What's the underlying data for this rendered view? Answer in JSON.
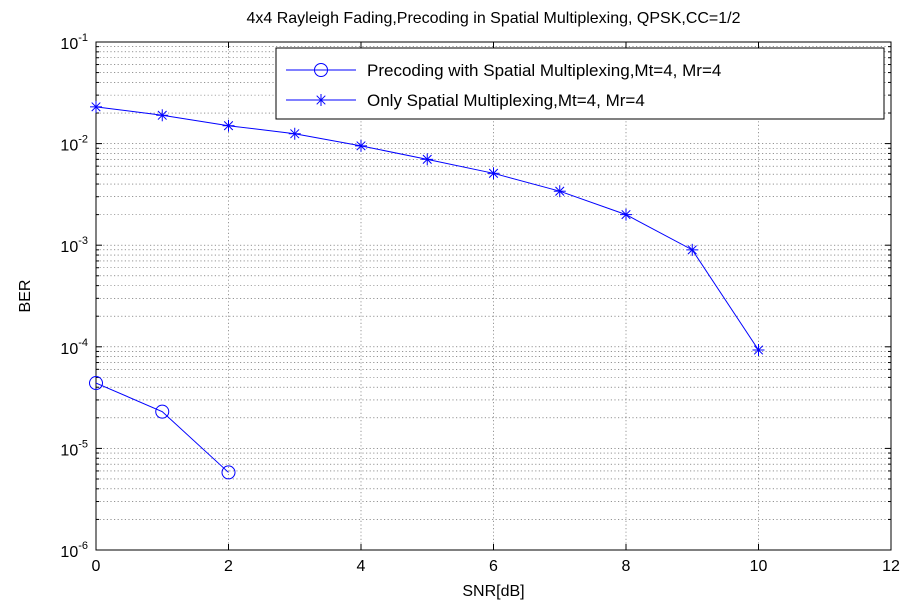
{
  "chart_data": {
    "type": "line",
    "title": "4x4 Rayleigh Fading,Precoding in Spatial Multiplexing, QPSK,CC=1/2",
    "xlabel": "SNR[dB]",
    "ylabel": "BER",
    "xlim": [
      0,
      12
    ],
    "ylim": [
      1e-06,
      0.1
    ],
    "yscale": "log",
    "grid": true,
    "legend_position": "top-right",
    "xticks": [
      "0",
      "2",
      "4",
      "6",
      "8",
      "10",
      "12"
    ],
    "yticks": [
      {
        "base": "10",
        "exp": "-1"
      },
      {
        "base": "10",
        "exp": "-2"
      },
      {
        "base": "10",
        "exp": "-3"
      },
      {
        "base": "10",
        "exp": "-4"
      },
      {
        "base": "10",
        "exp": "-5"
      },
      {
        "base": "10",
        "exp": "-6"
      }
    ],
    "series": [
      {
        "name": "Precoding with Spatial Multiplexing,Mt=4, Mr=4",
        "marker": "circle",
        "color": "#0000ff",
        "x": [
          0,
          1,
          2
        ],
        "y": [
          4.4e-05,
          2.3e-05,
          5.8e-06
        ]
      },
      {
        "name": "Only Spatial Multiplexing,Mt=4, Mr=4",
        "marker": "star",
        "color": "#0000ff",
        "x": [
          0,
          1,
          2,
          3,
          4,
          5,
          6,
          7,
          8,
          9,
          10
        ],
        "y": [
          0.023,
          0.019,
          0.015,
          0.0125,
          0.0095,
          0.007,
          0.0051,
          0.0034,
          0.002,
          0.0009,
          9.3e-05
        ]
      }
    ]
  }
}
